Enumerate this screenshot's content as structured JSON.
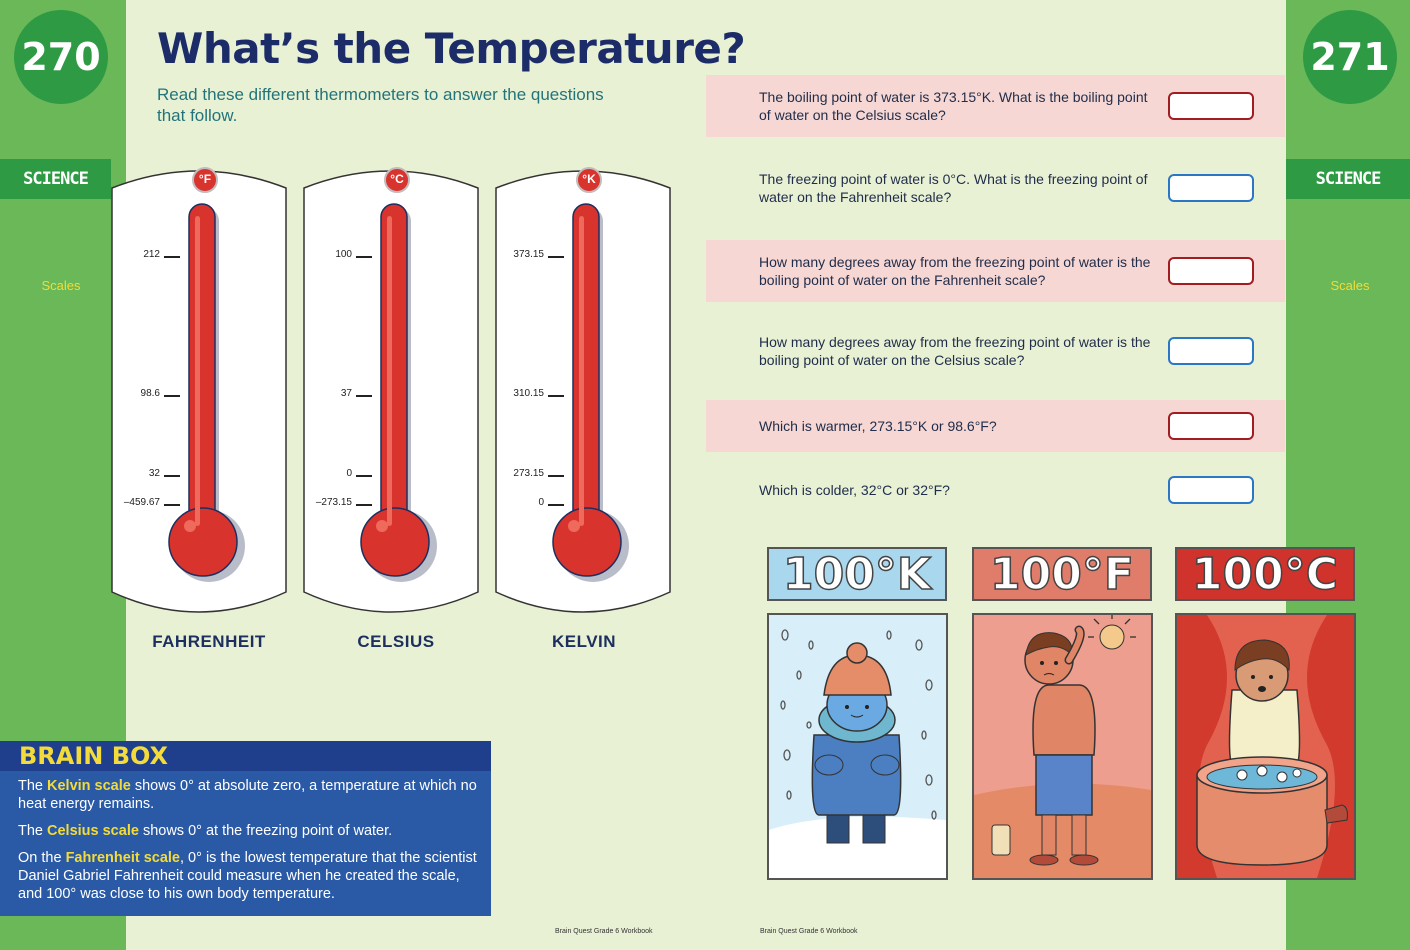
{
  "left_page": {
    "page_number": "270",
    "section": "SCIENCE",
    "topic": "Scales",
    "title": "What’s the Temperature?",
    "subtitle": "Read these different thermometers to answer the questions that follow.",
    "footer": "Brain Quest Grade 6 Workbook"
  },
  "right_page": {
    "page_number": "271",
    "section": "SCIENCE",
    "topic": "Scales",
    "footer": "Brain Quest Grade 6 Workbook"
  },
  "thermometers": [
    {
      "unit": "°F",
      "name": "FAHRENHEIT",
      "ticks": [
        "212",
        "98.6",
        "32",
        "–459.67"
      ]
    },
    {
      "unit": "°C",
      "name": "CELSIUS",
      "ticks": [
        "100",
        "37",
        "0",
        "–273.15"
      ]
    },
    {
      "unit": "°K",
      "name": "KELVIN",
      "ticks": [
        "373.15",
        "310.15",
        "273.15",
        "0"
      ]
    }
  ],
  "questions": [
    {
      "text": "The boiling point of water is 373.15°K. What is the boiling point of water on the Celsius scale?",
      "answer": ""
    },
    {
      "text": "The freezing point of water is 0°C. What is the freezing point of water on the Fahrenheit scale?",
      "answer": ""
    },
    {
      "text": "How many degrees away from the freezing point of water is the boiling point of water on the Fahrenheit scale?",
      "answer": ""
    },
    {
      "text": "How many degrees away from the freezing point of water is the boiling point of water on the Celsius scale?",
      "answer": ""
    },
    {
      "text": "Which is warmer, 273.15°K or 98.6°F?",
      "answer": ""
    },
    {
      "text": "Which is colder, 32°C or 32°F?",
      "answer": ""
    }
  ],
  "brain_box": {
    "title": "BRAIN BOX",
    "p1_pre": "The ",
    "p1_term": "Kelvin scale",
    "p1_post": " shows 0° at absolute zero, a temperature at which no heat energy remains.",
    "p2_pre": "The ",
    "p2_term": "Celsius scale",
    "p2_post": " shows 0° at the freezing point of water.",
    "p3_pre": "On the ",
    "p3_term": "Fahrenheit scale",
    "p3_post": ", 0° is the lowest temperature that the scientist Daniel Gabriel Fahrenheit could measure when he created the scale, and 100° was close to his own body temperature."
  },
  "illustrations": [
    {
      "label": "100°K"
    },
    {
      "label": "100°F"
    },
    {
      "label": "100°C"
    }
  ],
  "colors": {
    "page_bg": "#e9f1d5",
    "margin_green": "#6ab858",
    "badge_green": "#2e9a44",
    "thermo_red": "#d9332d",
    "box_red": "#a11d22",
    "box_blue": "#2b77c5",
    "brain_blue": "#2a5aa6"
  }
}
